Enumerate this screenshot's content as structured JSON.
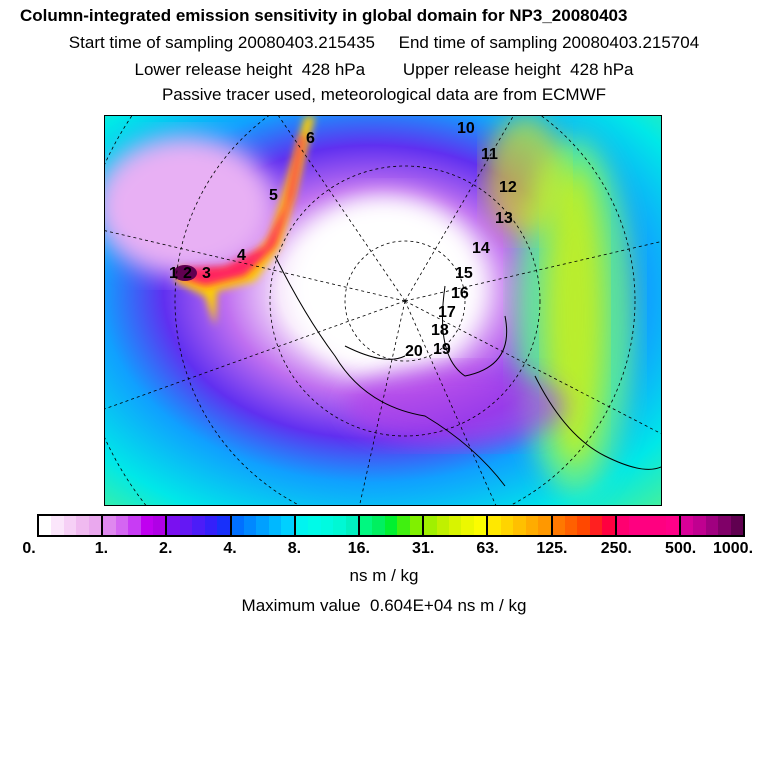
{
  "header": {
    "title": "Column-integrated emission sensitivity in global domain for NP3_20080403",
    "line2": "Start time of sampling 20080403.215435     End time of sampling 20080403.215704",
    "line3": "Lower release height  428 hPa        Upper release height  428 hPa",
    "line4": "Passive tracer used, meteorological data are from ECMWF"
  },
  "map": {
    "projection": "polar-stereographic",
    "labels": [
      "1",
      "2",
      "3",
      "4",
      "5",
      "6",
      "10",
      "11",
      "12",
      "13",
      "14",
      "15",
      "16",
      "17",
      "18",
      "19",
      "20"
    ]
  },
  "colorbar": {
    "ticks": [
      "0.",
      "1.",
      "2.",
      "4.",
      "8.",
      "16.",
      "31.",
      "63.",
      "125.",
      "250.",
      "500.",
      "1000."
    ],
    "segments": [
      [
        "#ffffff",
        "#fbe6fb",
        "#f6d0f6",
        "#f0baf0",
        "#eaa8ee"
      ],
      [
        "#df88ef",
        "#d466f2",
        "#c83cf4",
        "#c000f0",
        "#b000e6"
      ],
      [
        "#7a10f0",
        "#6418f4",
        "#4c1cf8",
        "#3420fa",
        "#1830fa"
      ],
      [
        "#0070ff",
        "#0088ff",
        "#00a0ff",
        "#00b8ff",
        "#00d0ff"
      ],
      [
        "#00f4f0",
        "#00fae8",
        "#00fae0",
        "#00f8d4",
        "#00f0c0"
      ],
      [
        "#00f880",
        "#00f060",
        "#00f030",
        "#40f010",
        "#80f000"
      ],
      [
        "#a0f000",
        "#c0f000",
        "#d8f400",
        "#ecf800",
        "#fcfc00"
      ],
      [
        "#ffe800",
        "#ffd400",
        "#ffc000",
        "#ffac00",
        "#ff9800"
      ],
      [
        "#ff7800",
        "#ff6000",
        "#ff4800",
        "#ff2020",
        "#ff0040"
      ],
      [
        "#ff0070",
        "#ff0080",
        "#ff0080",
        "#ff0080",
        "#ff0088"
      ],
      [
        "#d80098",
        "#c00090",
        "#a00080",
        "#800068",
        "#600050"
      ]
    ],
    "unit": "ns m / kg",
    "max_value": "Maximum value  0.604E+04 ns m / kg"
  }
}
